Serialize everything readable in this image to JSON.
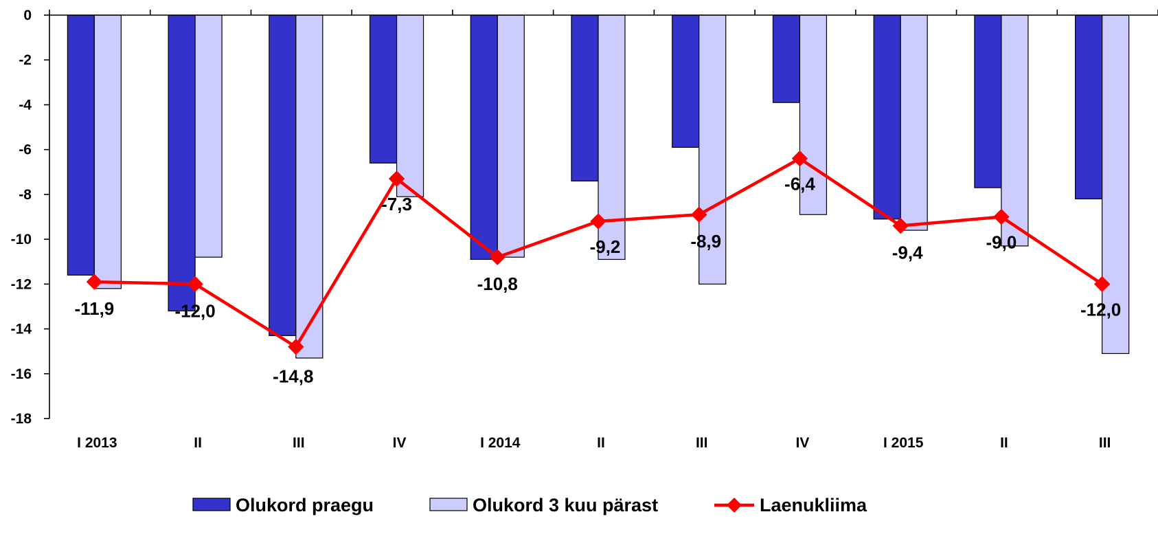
{
  "chart_data": {
    "type": "bar",
    "categories": [
      "I 2013",
      "II",
      "III",
      "IV",
      "I  2014",
      "II",
      "III",
      "IV",
      "I  2015",
      "II",
      "III"
    ],
    "series": [
      {
        "name": "Olukord praegu",
        "kind": "bar",
        "color": "#3333cc",
        "values": [
          -11.6,
          -13.2,
          -14.3,
          -6.6,
          -10.9,
          -7.4,
          -5.9,
          -3.9,
          -9.1,
          -7.7,
          -8.2
        ]
      },
      {
        "name": "Olukord 3 kuu pärast",
        "kind": "bar",
        "color": "#ccccff",
        "values": [
          -12.2,
          -10.8,
          -15.3,
          -8.1,
          -10.8,
          -10.9,
          -12.0,
          -8.9,
          -9.6,
          -10.3,
          -15.1
        ]
      },
      {
        "name": "Laenukliima",
        "kind": "line",
        "color": "#ff0000",
        "values": [
          -11.9,
          -12.0,
          -14.8,
          -7.3,
          -10.8,
          -9.2,
          -8.9,
          -6.4,
          -9.4,
          -9.0,
          -12.0
        ],
        "labels": [
          "-11,9",
          "-12,0",
          "-14,8",
          "-7,3",
          "-10,8",
          "-9,2",
          "-8,9",
          "-6,4",
          "-9,4",
          "-9,0",
          "-12,0"
        ]
      }
    ],
    "ylim": [
      -18,
      0
    ],
    "yticks": [
      0,
      -2,
      -4,
      -6,
      -8,
      -10,
      -12,
      -14,
      -16,
      -18
    ],
    "ytick_labels": [
      "0",
      "-2",
      "-4",
      "-6",
      "-8",
      "-10",
      "-12",
      "-14",
      "-16",
      "-18"
    ],
    "legend_position": "bottom",
    "grid": false,
    "xlabel": "",
    "ylabel": "",
    "title": ""
  }
}
